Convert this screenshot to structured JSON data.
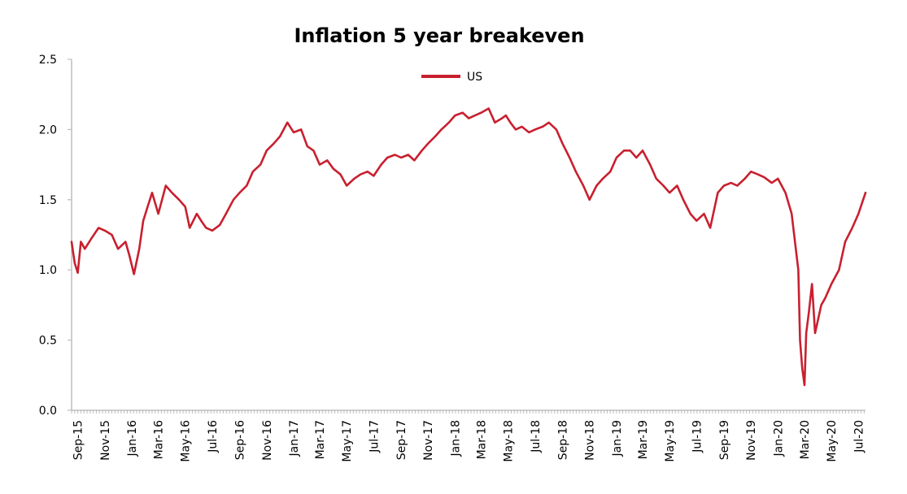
{
  "chart_data": {
    "type": "line",
    "title": "Inflation 5 year breakeven",
    "xlabel": "",
    "ylabel": "",
    "ylim": [
      0.0,
      2.5
    ],
    "yticks": [
      "0.0",
      "0.5",
      "1.0",
      "1.5",
      "2.0",
      "2.5"
    ],
    "xlim": [
      "2015-09-01",
      "2020-07-31"
    ],
    "xticks": [
      "Sep-15",
      "Nov-15",
      "Jan-16",
      "Mar-16",
      "May-16",
      "Jul-16",
      "Sep-16",
      "Nov-16",
      "Jan-17",
      "Mar-17",
      "May-17",
      "Jul-17",
      "Sep-17",
      "Nov-17",
      "Jan-18",
      "Mar-18",
      "May-18",
      "Jul-18",
      "Sep-18",
      "Nov-18",
      "Jan-19",
      "Mar-19",
      "May-19",
      "Jul-19",
      "Sep-19",
      "Nov-19",
      "Jan-20",
      "Mar-20",
      "May-20",
      "Jul-20"
    ],
    "legend_position": "top-center",
    "grid": false,
    "color": "#c8202f",
    "series": [
      {
        "name": "US",
        "x": [
          "2015-09-01",
          "2015-09-08",
          "2015-09-15",
          "2015-09-22",
          "2015-10-01",
          "2015-10-15",
          "2015-11-01",
          "2015-11-15",
          "2015-12-01",
          "2015-12-15",
          "2016-01-01",
          "2016-01-10",
          "2016-01-20",
          "2016-02-01",
          "2016-02-10",
          "2016-02-20",
          "2016-03-01",
          "2016-03-15",
          "2016-04-01",
          "2016-04-15",
          "2016-05-01",
          "2016-05-15",
          "2016-05-25",
          "2016-06-10",
          "2016-06-20",
          "2016-07-01",
          "2016-07-15",
          "2016-08-01",
          "2016-08-15",
          "2016-09-01",
          "2016-09-15",
          "2016-10-01",
          "2016-10-15",
          "2016-11-01",
          "2016-11-15",
          "2016-12-01",
          "2016-12-15",
          "2017-01-01",
          "2017-01-15",
          "2017-02-01",
          "2017-02-15",
          "2017-03-01",
          "2017-03-15",
          "2017-04-01",
          "2017-04-15",
          "2017-05-01",
          "2017-05-15",
          "2017-06-01",
          "2017-06-15",
          "2017-07-01",
          "2017-07-15",
          "2017-08-01",
          "2017-08-15",
          "2017-09-01",
          "2017-09-15",
          "2017-10-01",
          "2017-10-15",
          "2017-11-01",
          "2017-11-15",
          "2017-12-01",
          "2017-12-15",
          "2018-01-01",
          "2018-01-15",
          "2018-02-01",
          "2018-02-15",
          "2018-03-01",
          "2018-03-15",
          "2018-04-01",
          "2018-04-15",
          "2018-05-01",
          "2018-05-10",
          "2018-05-20",
          "2018-06-01",
          "2018-06-15",
          "2018-07-01",
          "2018-07-15",
          "2018-08-01",
          "2018-08-15",
          "2018-09-01",
          "2018-09-15",
          "2018-10-01",
          "2018-10-15",
          "2018-11-01",
          "2018-11-15",
          "2018-12-01",
          "2018-12-15",
          "2019-01-01",
          "2019-01-15",
          "2019-02-01",
          "2019-02-15",
          "2019-03-01",
          "2019-03-15",
          "2019-04-01",
          "2019-04-15",
          "2019-05-01",
          "2019-05-15",
          "2019-06-01",
          "2019-06-15",
          "2019-07-01",
          "2019-07-15",
          "2019-08-01",
          "2019-08-15",
          "2019-09-01",
          "2019-09-15",
          "2019-10-01",
          "2019-10-15",
          "2019-11-01",
          "2019-11-15",
          "2019-12-01",
          "2019-12-15",
          "2020-01-01",
          "2020-01-15",
          "2020-02-01",
          "2020-02-15",
          "2020-03-01",
          "2020-03-05",
          "2020-03-10",
          "2020-03-15",
          "2020-03-19",
          "2020-03-25",
          "2020-04-01",
          "2020-04-08",
          "2020-04-15",
          "2020-04-22",
          "2020-05-01",
          "2020-05-15",
          "2020-06-01",
          "2020-06-15",
          "2020-07-01",
          "2020-07-15",
          "2020-07-31"
        ],
        "y": [
          1.2,
          1.05,
          0.98,
          1.2,
          1.15,
          1.22,
          1.3,
          1.28,
          1.25,
          1.15,
          1.2,
          1.1,
          0.97,
          1.15,
          1.35,
          1.45,
          1.55,
          1.4,
          1.6,
          1.55,
          1.5,
          1.45,
          1.3,
          1.4,
          1.35,
          1.3,
          1.28,
          1.32,
          1.4,
          1.5,
          1.55,
          1.6,
          1.7,
          1.75,
          1.85,
          1.9,
          1.95,
          2.05,
          1.98,
          2.0,
          1.88,
          1.85,
          1.75,
          1.78,
          1.72,
          1.68,
          1.6,
          1.65,
          1.68,
          1.7,
          1.67,
          1.75,
          1.8,
          1.82,
          1.8,
          1.82,
          1.78,
          1.85,
          1.9,
          1.95,
          2.0,
          2.05,
          2.1,
          2.12,
          2.08,
          2.1,
          2.12,
          2.15,
          2.05,
          2.08,
          2.1,
          2.05,
          2.0,
          2.02,
          1.98,
          2.0,
          2.02,
          2.05,
          2.0,
          1.9,
          1.8,
          1.7,
          1.6,
          1.5,
          1.6,
          1.65,
          1.7,
          1.8,
          1.85,
          1.85,
          1.8,
          1.85,
          1.75,
          1.65,
          1.6,
          1.55,
          1.6,
          1.5,
          1.4,
          1.35,
          1.4,
          1.3,
          1.55,
          1.6,
          1.62,
          1.6,
          1.65,
          1.7,
          1.68,
          1.66,
          1.62,
          1.65,
          1.55,
          1.4,
          1.0,
          0.5,
          0.3,
          0.18,
          0.55,
          0.7,
          0.9,
          0.55,
          0.65,
          0.75,
          0.8,
          0.9,
          1.0,
          1.2,
          1.3,
          1.4,
          1.55
        ]
      }
    ]
  }
}
